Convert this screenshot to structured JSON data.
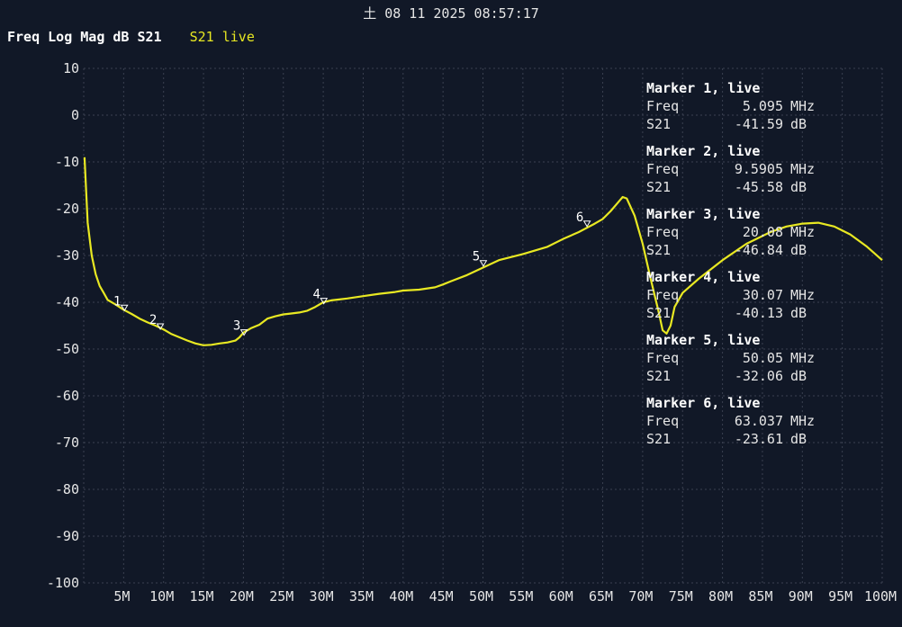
{
  "timestamp": "土 08 11 2025 08:57:17",
  "header": {
    "format": "Freq Log Mag dB S21",
    "trace": "S21 live"
  },
  "colors": {
    "background": "#111827",
    "trace": "#e8e822",
    "grid": "#3a4150",
    "text": "#e6e6e6"
  },
  "chart_data": {
    "type": "line",
    "title": "Freq Log Mag dB S21",
    "xlabel": "",
    "ylabel": "",
    "xlim": [
      0,
      100
    ],
    "ylim": [
      -100,
      10
    ],
    "grid": true,
    "x_ticks": [
      "5M",
      "10M",
      "15M",
      "20M",
      "25M",
      "30M",
      "35M",
      "40M",
      "45M",
      "50M",
      "55M",
      "60M",
      "65M",
      "70M",
      "75M",
      "80M",
      "85M",
      "90M",
      "95M",
      "100M"
    ],
    "y_ticks": [
      "10",
      "0",
      "-10",
      "-20",
      "-30",
      "-40",
      "-50",
      "-60",
      "-70",
      "-80",
      "-90",
      "-100"
    ],
    "series": [
      {
        "name": "S21 live",
        "x": [
          0.1,
          0.5,
          1,
          1.5,
          2,
          2.5,
          3,
          4,
          5,
          6,
          7,
          8,
          9,
          10,
          11,
          12,
          13,
          14,
          15,
          16,
          17,
          18,
          19,
          19.5,
          20,
          21,
          22,
          23,
          24,
          25,
          26,
          27,
          28,
          29,
          30,
          31,
          32,
          33,
          35,
          37,
          39,
          40,
          42,
          44,
          45,
          46,
          48,
          50,
          52,
          55,
          58,
          60,
          62,
          64,
          65,
          66,
          67,
          67.5,
          68,
          69,
          70,
          71,
          72,
          72.5,
          73,
          73.5,
          74,
          75,
          77,
          80,
          83,
          86,
          88,
          90,
          92,
          94,
          96,
          98,
          100
        ],
        "y": [
          -9,
          -23,
          -30,
          -34,
          -36.5,
          -38,
          -39.5,
          -40.5,
          -41.6,
          -42.5,
          -43.5,
          -44.3,
          -45,
          -45.8,
          -46.8,
          -47.5,
          -48.2,
          -48.8,
          -49.2,
          -49.1,
          -48.8,
          -48.6,
          -48.2,
          -47.5,
          -46.5,
          -45.5,
          -44.8,
          -43.5,
          -43,
          -42.6,
          -42.4,
          -42.2,
          -41.8,
          -41,
          -40,
          -39.6,
          -39.4,
          -39.2,
          -38.7,
          -38.2,
          -37.8,
          -37.5,
          -37.3,
          -36.8,
          -36.2,
          -35.5,
          -34.2,
          -32.6,
          -31,
          -29.7,
          -28.2,
          -26.5,
          -25,
          -23.2,
          -22.2,
          -20.5,
          -18.5,
          -17.5,
          -17.8,
          -21.5,
          -27.5,
          -35,
          -42,
          -46,
          -46.7,
          -45,
          -41,
          -38,
          -35,
          -31,
          -27.5,
          -25,
          -23.8,
          -23.2,
          -23,
          -23.8,
          -25.5,
          -28,
          -31
        ]
      }
    ],
    "markers": [
      {
        "id": "1",
        "freq_mhz": 5.095,
        "db": -41.59
      },
      {
        "id": "2",
        "freq_mhz": 9.5905,
        "db": -45.58
      },
      {
        "id": "3",
        "freq_mhz": 20.08,
        "db": -46.84
      },
      {
        "id": "4",
        "freq_mhz": 30.07,
        "db": -40.13
      },
      {
        "id": "5",
        "freq_mhz": 50.05,
        "db": -32.06
      },
      {
        "id": "6",
        "freq_mhz": 63.037,
        "db": -23.61
      }
    ]
  },
  "readouts": [
    {
      "title": "Marker 1, live",
      "freq_label": "Freq",
      "freq_value": "5.095",
      "freq_unit": "MHz",
      "param_label": "S21",
      "param_value": "-41.59",
      "param_unit": "dB"
    },
    {
      "title": "Marker 2, live",
      "freq_label": "Freq",
      "freq_value": "9.5905",
      "freq_unit": "MHz",
      "param_label": "S21",
      "param_value": "-45.58",
      "param_unit": "dB"
    },
    {
      "title": "Marker 3, live",
      "freq_label": "Freq",
      "freq_value": "20.08",
      "freq_unit": "MHz",
      "param_label": "S21",
      "param_value": "-46.84",
      "param_unit": "dB"
    },
    {
      "title": "Marker 4, live",
      "freq_label": "Freq",
      "freq_value": "30.07",
      "freq_unit": "MHz",
      "param_label": "S21",
      "param_value": "-40.13",
      "param_unit": "dB"
    },
    {
      "title": "Marker 5, live",
      "freq_label": "Freq",
      "freq_value": "50.05",
      "freq_unit": "MHz",
      "param_label": "S21",
      "param_value": "-32.06",
      "param_unit": "dB"
    },
    {
      "title": "Marker 6, live",
      "freq_label": "Freq",
      "freq_value": "63.037",
      "freq_unit": "MHz",
      "param_label": "S21",
      "param_value": "-23.61",
      "param_unit": "dB"
    }
  ]
}
